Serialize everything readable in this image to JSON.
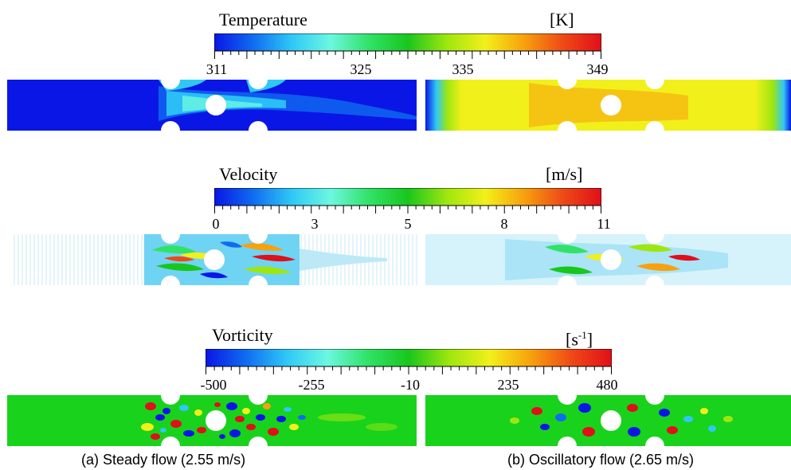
{
  "panels": [
    {
      "title": "Temperature",
      "unit": "[K]",
      "ticks": [
        "311",
        "325",
        "335",
        "349"
      ],
      "colors": [
        "#0a16e6",
        "#0f6cf0",
        "#2fc8f6",
        "#6cf7e0",
        "#31e267",
        "#19c61d",
        "#9ee60f",
        "#f2f01a",
        "#f7a10e",
        "#ee4a16",
        "#e10f19"
      ]
    },
    {
      "title": "Velocity",
      "unit": "[m/s]",
      "ticks": [
        "0",
        "3",
        "5",
        "8",
        "11"
      ],
      "colors": [
        "#0a16e6",
        "#0f6cf0",
        "#2fc8f6",
        "#6cf7e0",
        "#31e267",
        "#19c61d",
        "#9ee60f",
        "#f2f01a",
        "#f7a10e",
        "#ee4a16",
        "#e10f19"
      ]
    },
    {
      "title": "Vorticity",
      "unit": "[s",
      "unit_sup": "-1",
      "unit_close": "]",
      "ticks": [
        "-500",
        "-255",
        "-10",
        "235",
        "480"
      ],
      "colors": [
        "#0a16e6",
        "#0f6cf0",
        "#2fc8f6",
        "#6cf7e0",
        "#31e267",
        "#19c61d",
        "#9ee60f",
        "#f2f01a",
        "#f7a10e",
        "#ee4a16",
        "#e10f19"
      ]
    }
  ],
  "captions": {
    "left": "(a) Steady flow (2.55 m/s)",
    "right": "(b) Oscillatory flow (2.65 m/s)"
  }
}
